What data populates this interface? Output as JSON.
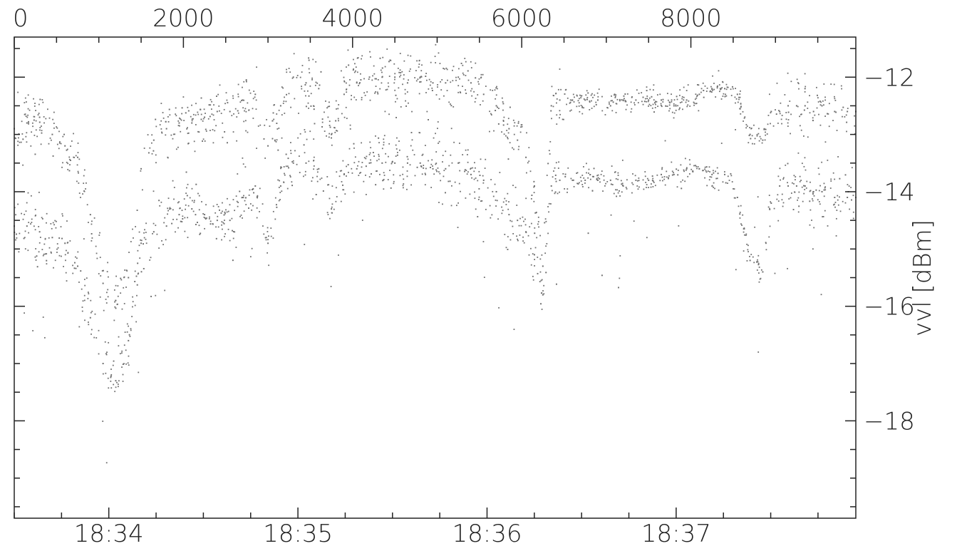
{
  "chart_data": {
    "type": "scatter",
    "title": "",
    "ylabel": "vvl  [dBm]",
    "xlabel_bottom": "",
    "xlabel_top": "",
    "top_axis": {
      "range": [
        0,
        9950
      ],
      "major_ticks": [
        0,
        2000,
        4000,
        6000,
        8000
      ],
      "tick_labels": [
        "0",
        "2000",
        "4000",
        "6000",
        "8000"
      ],
      "minor_step": 500
    },
    "bottom_axis": {
      "type": "time",
      "range": [
        "18:33:30",
        "18:37:57"
      ],
      "major_ticks": [
        "18:34",
        "18:35",
        "18:36",
        "18:37"
      ],
      "tick_labels": [
        "18:34",
        "18:35",
        "18:36",
        "18:37"
      ],
      "minor_step_seconds": 15
    },
    "y_axis": {
      "range": [
        -19.7,
        -11.3
      ],
      "major_ticks": [
        -18,
        -16,
        -14,
        -12
      ],
      "tick_labels": [
        "−18",
        "−16",
        "−14",
        "−12"
      ],
      "minor_step": 0.5,
      "position": "right"
    },
    "grid": false,
    "marker": {
      "color": "#707070",
      "size": "small"
    },
    "series": [
      {
        "x": [
          0,
          150,
          300,
          450,
          600,
          750,
          900,
          1050,
          1200,
          1350,
          1500,
          1650,
          1800,
          1950,
          2100,
          2250,
          2400,
          2550,
          2700,
          2850,
          3000,
          3150,
          3300,
          3450,
          3600,
          3750,
          3900,
          4050,
          4200,
          4350,
          4500,
          4650,
          4800,
          4950,
          5100,
          5250,
          5400,
          5550,
          5700,
          5850,
          5950,
          6050,
          6150,
          6250,
          6350,
          6450,
          6600,
          6750,
          6900,
          7050,
          7200,
          7350,
          7500,
          7650,
          7800,
          7950,
          8100,
          8250,
          8400,
          8550,
          8700,
          8850,
          8950,
          9050,
          9150,
          9250,
          9350,
          9450,
          9550,
          9700,
          9850,
          9950
        ],
        "y": [
          -12.9,
          -12.8,
          -12.7,
          -13.0,
          -13.2,
          -13.4,
          -14.4,
          -15.6,
          -15.9,
          -15.5,
          -13.6,
          -13.1,
          -12.9,
          -12.8,
          -12.8,
          -12.7,
          -12.6,
          -12.6,
          -12.4,
          -12.3,
          -13.2,
          -12.5,
          -12.0,
          -12.1,
          -12.2,
          -13.0,
          -12.3,
          -12.1,
          -12.0,
          -12.0,
          -12.0,
          -12.1,
          -12.0,
          -12.1,
          -12.1,
          -12.0,
          -12.1,
          -12.3,
          -12.5,
          -12.9,
          -13.1,
          -13.4,
          -13.9,
          -15.3,
          -12.5,
          -12.4,
          -12.4,
          -12.4,
          -12.4,
          -12.5,
          -12.4,
          -12.4,
          -12.4,
          -12.4,
          -12.5,
          -12.4,
          -12.3,
          -12.2,
          -12.2,
          -12.3,
          -13.0,
          -13.1,
          -12.6,
          -12.6,
          -12.5,
          -12.5,
          -12.5,
          -12.6,
          -12.5,
          -12.6,
          -12.6,
          -12.6
        ]
      },
      {
        "x": [
          0,
          150,
          300,
          450,
          600,
          750,
          900,
          1050,
          1200,
          1350,
          1500,
          1650,
          1800,
          1950,
          2100,
          2250,
          2400,
          2550,
          2700,
          2850,
          3000,
          3150,
          3300,
          3450,
          3600,
          3750,
          3900,
          4050,
          4200,
          4350,
          4500,
          4650,
          4800,
          4950,
          5100,
          5250,
          5400,
          5550,
          5700,
          5850,
          5950,
          6050,
          6150,
          6250,
          6350,
          6450,
          6600,
          6750,
          6900,
          7050,
          7200,
          7350,
          7500,
          7650,
          7800,
          7950,
          8100,
          8250,
          8400,
          8550,
          8700,
          8850,
          8950,
          9050,
          9150,
          9250,
          9350,
          9450,
          9550,
          9700,
          9850,
          9950
        ],
        "y": [
          -14.6,
          -14.6,
          -14.7,
          -14.8,
          -14.9,
          -15.3,
          -16.2,
          -17.0,
          -17.3,
          -16.6,
          -14.9,
          -14.7,
          -14.6,
          -14.4,
          -14.3,
          -14.4,
          -14.5,
          -14.5,
          -14.1,
          -13.9,
          -14.9,
          -13.9,
          -13.5,
          -13.5,
          -13.6,
          -14.3,
          -13.7,
          -13.6,
          -13.5,
          -13.5,
          -13.5,
          -13.5,
          -13.5,
          -13.6,
          -13.6,
          -13.5,
          -13.7,
          -13.8,
          -14.0,
          -14.4,
          -14.5,
          -14.7,
          -15.1,
          -15.8,
          -13.9,
          -13.8,
          -13.8,
          -13.8,
          -13.8,
          -13.8,
          -13.9,
          -13.8,
          -13.8,
          -13.7,
          -13.7,
          -13.6,
          -13.6,
          -13.7,
          -13.7,
          -14.1,
          -15.2,
          -15.4,
          -14.2,
          -13.9,
          -13.9,
          -13.9,
          -13.9,
          -14.0,
          -14.0,
          -14.1,
          -14.1,
          -14.1
        ]
      }
    ]
  }
}
